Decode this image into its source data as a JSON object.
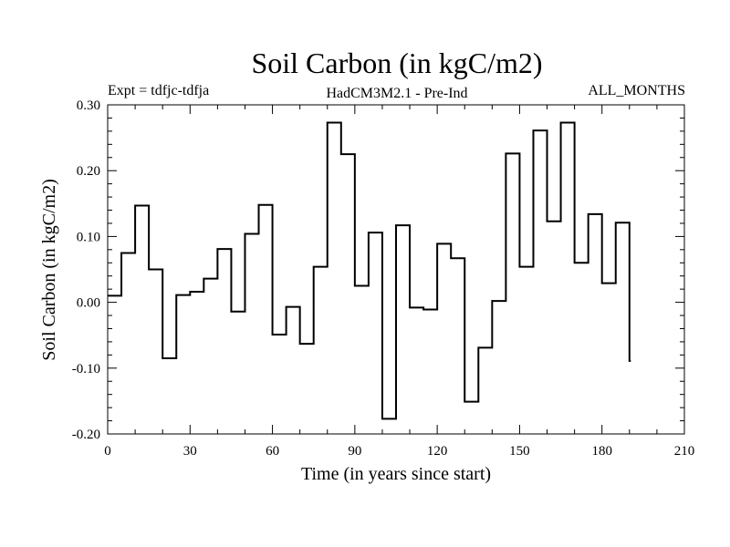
{
  "chart_data": {
    "type": "line",
    "style": "step",
    "title": "Soil Carbon (in kgC/m2)",
    "subtitle_left": "Expt = tdfjc-tdfja",
    "subtitle_center": "HadCM3M2.1 - Pre-Ind",
    "subtitle_right": "ALL_MONTHS",
    "xlabel": "Time (in years since start)",
    "ylabel": "Soil Carbon (in kgC/m2)",
    "xlim": [
      0,
      210
    ],
    "ylim": [
      -0.2,
      0.3
    ],
    "xticks": [
      0,
      30,
      60,
      90,
      120,
      150,
      180,
      210
    ],
    "xtick_labels": [
      "0",
      "30",
      "60",
      "90",
      "120",
      "150",
      "180",
      "210"
    ],
    "yticks": [
      -0.2,
      -0.1,
      0.0,
      0.1,
      0.2,
      0.3
    ],
    "ytick_labels": [
      "-0.20",
      "-0.10",
      "0.00",
      "0.10",
      "0.20",
      "0.30"
    ],
    "line_color": "#000000",
    "series": [
      {
        "name": "Soil Carbon",
        "segments": [
          {
            "x_start": 0,
            "x_end": 5,
            "value": 0.01
          },
          {
            "x_start": 5,
            "x_end": 10,
            "value": 0.075
          },
          {
            "x_start": 10,
            "x_end": 15,
            "value": 0.147
          },
          {
            "x_start": 15,
            "x_end": 20,
            "value": 0.05
          },
          {
            "x_start": 20,
            "x_end": 25,
            "value": -0.085
          },
          {
            "x_start": 25,
            "x_end": 30,
            "value": 0.011
          },
          {
            "x_start": 30,
            "x_end": 35,
            "value": 0.016
          },
          {
            "x_start": 35,
            "x_end": 40,
            "value": 0.036
          },
          {
            "x_start": 40,
            "x_end": 45,
            "value": 0.081
          },
          {
            "x_start": 45,
            "x_end": 50,
            "value": -0.014
          },
          {
            "x_start": 50,
            "x_end": 55,
            "value": 0.104
          },
          {
            "x_start": 55,
            "x_end": 60,
            "value": 0.148
          },
          {
            "x_start": 60,
            "x_end": 65,
            "value": -0.049
          },
          {
            "x_start": 65,
            "x_end": 70,
            "value": -0.007
          },
          {
            "x_start": 70,
            "x_end": 75,
            "value": -0.063
          },
          {
            "x_start": 75,
            "x_end": 80,
            "value": 0.054
          },
          {
            "x_start": 80,
            "x_end": 85,
            "value": 0.273
          },
          {
            "x_start": 85,
            "x_end": 90,
            "value": 0.225
          },
          {
            "x_start": 90,
            "x_end": 95,
            "value": 0.025
          },
          {
            "x_start": 95,
            "x_end": 100,
            "value": 0.106
          },
          {
            "x_start": 100,
            "x_end": 105,
            "value": -0.177
          },
          {
            "x_start": 105,
            "x_end": 110,
            "value": 0.117
          },
          {
            "x_start": 110,
            "x_end": 115,
            "value": -0.008
          },
          {
            "x_start": 115,
            "x_end": 120,
            "value": -0.011
          },
          {
            "x_start": 120,
            "x_end": 125,
            "value": 0.089
          },
          {
            "x_start": 125,
            "x_end": 130,
            "value": 0.067
          },
          {
            "x_start": 130,
            "x_end": 135,
            "value": -0.151
          },
          {
            "x_start": 135,
            "x_end": 140,
            "value": -0.069
          },
          {
            "x_start": 140,
            "x_end": 145,
            "value": 0.002
          },
          {
            "x_start": 145,
            "x_end": 150,
            "value": 0.226
          },
          {
            "x_start": 150,
            "x_end": 155,
            "value": 0.054
          },
          {
            "x_start": 155,
            "x_end": 160,
            "value": 0.261
          },
          {
            "x_start": 160,
            "x_end": 165,
            "value": 0.123
          },
          {
            "x_start": 165,
            "x_end": 170,
            "value": 0.273
          },
          {
            "x_start": 170,
            "x_end": 175,
            "value": 0.06
          },
          {
            "x_start": 175,
            "x_end": 180,
            "value": 0.134
          },
          {
            "x_start": 180,
            "x_end": 185,
            "value": 0.029
          },
          {
            "x_start": 185,
            "x_end": 190,
            "value": 0.121
          },
          {
            "x_start": 190,
            "x_end": 190.5,
            "value": -0.089
          }
        ]
      }
    ]
  }
}
